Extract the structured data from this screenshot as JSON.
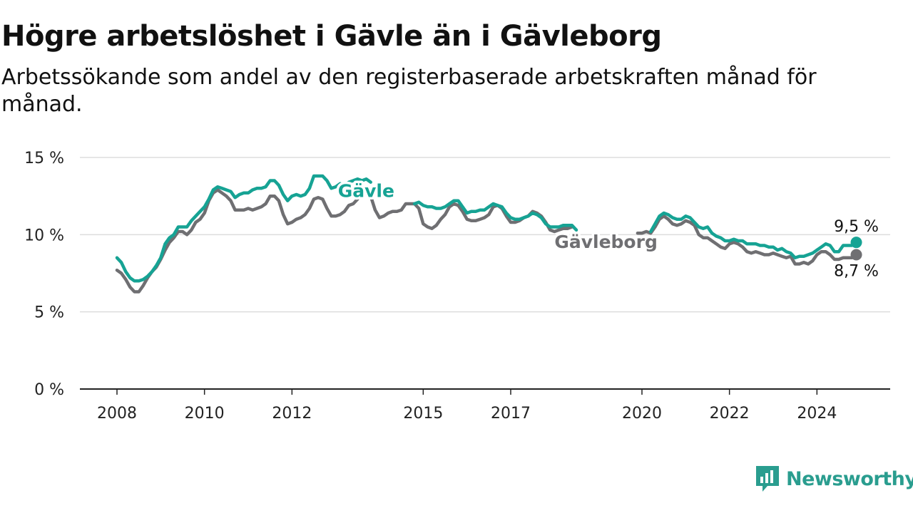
{
  "header": {
    "title": "Högre arbetslöshet i Gävle än i Gävleborg",
    "subtitle": "Arbetssökande som andel av den registerbaserade arbetskraften månad för månad."
  },
  "brand": {
    "name": "Newsworthy",
    "icon": "newsworthy-logo-icon"
  },
  "colors": {
    "gavle": "#16a394",
    "gavleborg": "#6f6f72",
    "grid": "#dddddd",
    "axis": "#222222"
  },
  "chart_data": {
    "type": "line",
    "title": "Högre arbetslöshet i Gävle än i Gävleborg",
    "xlabel": "",
    "ylabel": "",
    "ylim": [
      0,
      15
    ],
    "y_ticks": [
      0,
      5,
      10,
      15
    ],
    "y_tick_labels": [
      "0 %",
      "5 %",
      "10 %",
      "15 %"
    ],
    "x_ticks": [
      2008,
      2010,
      2012,
      2015,
      2017,
      2020,
      2022,
      2024
    ],
    "x_tick_labels": [
      "2008",
      "2010",
      "2012",
      "2015",
      "2017",
      "2020",
      "2022",
      "2024"
    ],
    "grid": "horizontal",
    "series": [
      {
        "name": "Gävle",
        "end_label": "9,5 %",
        "points": [
          [
            2008.0,
            8.5
          ],
          [
            2008.1,
            8.2
          ],
          [
            2008.2,
            7.6
          ],
          [
            2008.3,
            7.2
          ],
          [
            2008.4,
            7.0
          ],
          [
            2008.5,
            7.0
          ],
          [
            2008.6,
            7.1
          ],
          [
            2008.7,
            7.3
          ],
          [
            2008.8,
            7.6
          ],
          [
            2008.9,
            8.0
          ],
          [
            2009.0,
            8.5
          ],
          [
            2009.1,
            9.4
          ],
          [
            2009.2,
            9.8
          ],
          [
            2009.3,
            10.0
          ],
          [
            2009.4,
            10.5
          ],
          [
            2009.5,
            10.5
          ],
          [
            2009.6,
            10.5
          ],
          [
            2009.7,
            10.9
          ],
          [
            2009.8,
            11.2
          ],
          [
            2009.9,
            11.5
          ],
          [
            2010.0,
            11.8
          ],
          [
            2010.1,
            12.3
          ],
          [
            2010.2,
            12.9
          ],
          [
            2010.3,
            13.1
          ],
          [
            2010.4,
            13.0
          ],
          [
            2010.5,
            12.9
          ],
          [
            2010.6,
            12.8
          ],
          [
            2010.7,
            12.4
          ],
          [
            2010.8,
            12.6
          ],
          [
            2010.9,
            12.7
          ],
          [
            2011.0,
            12.7
          ],
          [
            2011.1,
            12.9
          ],
          [
            2011.2,
            13.0
          ],
          [
            2011.3,
            13.0
          ],
          [
            2011.4,
            13.1
          ],
          [
            2011.5,
            13.5
          ],
          [
            2011.6,
            13.5
          ],
          [
            2011.7,
            13.2
          ],
          [
            2011.8,
            12.6
          ],
          [
            2011.9,
            12.2
          ],
          [
            2012.0,
            12.5
          ],
          [
            2012.1,
            12.6
          ],
          [
            2012.2,
            12.5
          ],
          [
            2012.3,
            12.6
          ],
          [
            2012.4,
            13.0
          ],
          [
            2012.5,
            13.8
          ],
          [
            2012.6,
            13.8
          ],
          [
            2012.7,
            13.8
          ],
          [
            2012.8,
            13.5
          ],
          [
            2012.9,
            13.0
          ],
          [
            2013.0,
            13.1
          ],
          [
            2013.1,
            13.3
          ],
          [
            2013.2,
            13.2
          ],
          [
            2013.3,
            13.4
          ],
          [
            2013.4,
            13.5
          ],
          [
            2013.5,
            13.6
          ],
          [
            2013.6,
            13.5
          ],
          [
            2013.7,
            13.6
          ],
          [
            2013.8,
            13.4
          ],
          null,
          [
            2014.8,
            12.0
          ],
          [
            2014.9,
            12.1
          ],
          [
            2015.0,
            11.9
          ],
          [
            2015.1,
            11.8
          ],
          [
            2015.2,
            11.8
          ],
          [
            2015.3,
            11.7
          ],
          [
            2015.4,
            11.7
          ],
          [
            2015.5,
            11.8
          ],
          [
            2015.6,
            12.0
          ],
          [
            2015.7,
            12.2
          ],
          [
            2015.8,
            12.2
          ],
          [
            2015.9,
            11.8
          ],
          [
            2016.0,
            11.4
          ],
          [
            2016.1,
            11.5
          ],
          [
            2016.2,
            11.5
          ],
          [
            2016.3,
            11.6
          ],
          [
            2016.4,
            11.6
          ],
          [
            2016.5,
            11.8
          ],
          [
            2016.6,
            12.0
          ],
          [
            2016.7,
            11.9
          ],
          [
            2016.8,
            11.8
          ],
          [
            2016.9,
            11.4
          ],
          [
            2017.0,
            11.1
          ],
          [
            2017.1,
            11.0
          ],
          [
            2017.2,
            11.0
          ],
          [
            2017.3,
            11.1
          ],
          [
            2017.4,
            11.2
          ],
          [
            2017.5,
            11.4
          ],
          [
            2017.6,
            11.3
          ],
          [
            2017.7,
            11.1
          ],
          [
            2017.8,
            10.7
          ],
          [
            2017.9,
            10.5
          ],
          [
            2018.0,
            10.5
          ],
          [
            2018.1,
            10.5
          ],
          [
            2018.2,
            10.6
          ],
          [
            2018.3,
            10.6
          ],
          [
            2018.4,
            10.6
          ],
          [
            2018.5,
            10.3
          ],
          null,
          [
            2020.2,
            10.2
          ],
          [
            2020.3,
            10.7
          ],
          [
            2020.4,
            11.2
          ],
          [
            2020.5,
            11.4
          ],
          [
            2020.6,
            11.3
          ],
          [
            2020.7,
            11.1
          ],
          [
            2020.8,
            11.0
          ],
          [
            2020.9,
            11.0
          ],
          [
            2021.0,
            11.2
          ],
          [
            2021.1,
            11.1
          ],
          [
            2021.2,
            10.8
          ],
          [
            2021.3,
            10.5
          ],
          [
            2021.4,
            10.4
          ],
          [
            2021.5,
            10.5
          ],
          [
            2021.6,
            10.1
          ],
          [
            2021.7,
            9.9
          ],
          [
            2021.8,
            9.8
          ],
          [
            2021.9,
            9.6
          ],
          [
            2022.0,
            9.6
          ],
          [
            2022.1,
            9.7
          ],
          [
            2022.2,
            9.6
          ],
          [
            2022.3,
            9.6
          ],
          [
            2022.4,
            9.4
          ],
          [
            2022.5,
            9.4
          ],
          [
            2022.6,
            9.4
          ],
          [
            2022.7,
            9.3
          ],
          [
            2022.8,
            9.3
          ],
          [
            2022.9,
            9.2
          ],
          [
            2023.0,
            9.2
          ],
          [
            2023.1,
            9.0
          ],
          [
            2023.2,
            9.1
          ],
          [
            2023.3,
            8.9
          ],
          [
            2023.4,
            8.8
          ],
          [
            2023.5,
            8.5
          ],
          [
            2023.6,
            8.6
          ],
          [
            2023.7,
            8.6
          ],
          [
            2023.8,
            8.7
          ],
          [
            2023.9,
            8.8
          ],
          [
            2024.0,
            9.0
          ],
          [
            2024.1,
            9.2
          ],
          [
            2024.2,
            9.4
          ],
          [
            2024.3,
            9.3
          ],
          [
            2024.4,
            8.9
          ],
          [
            2024.5,
            8.9
          ],
          [
            2024.6,
            9.3
          ],
          [
            2024.7,
            9.3
          ],
          [
            2024.8,
            9.3
          ],
          [
            2024.9,
            9.5
          ]
        ]
      },
      {
        "name": "Gävleborg",
        "end_label": "8,7 %",
        "points": [
          [
            2008.0,
            7.7
          ],
          [
            2008.1,
            7.5
          ],
          [
            2008.2,
            7.1
          ],
          [
            2008.3,
            6.6
          ],
          [
            2008.4,
            6.3
          ],
          [
            2008.5,
            6.3
          ],
          [
            2008.6,
            6.7
          ],
          [
            2008.7,
            7.2
          ],
          [
            2008.8,
            7.6
          ],
          [
            2008.9,
            7.9
          ],
          [
            2009.0,
            8.4
          ],
          [
            2009.1,
            9.0
          ],
          [
            2009.2,
            9.5
          ],
          [
            2009.3,
            9.8
          ],
          [
            2009.4,
            10.2
          ],
          [
            2009.5,
            10.2
          ],
          [
            2009.6,
            10.0
          ],
          [
            2009.7,
            10.3
          ],
          [
            2009.8,
            10.8
          ],
          [
            2009.9,
            11.0
          ],
          [
            2010.0,
            11.4
          ],
          [
            2010.1,
            12.2
          ],
          [
            2010.2,
            12.7
          ],
          [
            2010.3,
            12.9
          ],
          [
            2010.4,
            12.7
          ],
          [
            2010.5,
            12.5
          ],
          [
            2010.6,
            12.2
          ],
          [
            2010.7,
            11.6
          ],
          [
            2010.8,
            11.6
          ],
          [
            2010.9,
            11.6
          ],
          [
            2011.0,
            11.7
          ],
          [
            2011.1,
            11.6
          ],
          [
            2011.2,
            11.7
          ],
          [
            2011.3,
            11.8
          ],
          [
            2011.4,
            12.0
          ],
          [
            2011.5,
            12.5
          ],
          [
            2011.6,
            12.5
          ],
          [
            2011.7,
            12.2
          ],
          [
            2011.8,
            11.3
          ],
          [
            2011.9,
            10.7
          ],
          [
            2012.0,
            10.8
          ],
          [
            2012.1,
            11.0
          ],
          [
            2012.2,
            11.1
          ],
          [
            2012.3,
            11.3
          ],
          [
            2012.4,
            11.7
          ],
          [
            2012.5,
            12.3
          ],
          [
            2012.6,
            12.4
          ],
          [
            2012.7,
            12.3
          ],
          [
            2012.8,
            11.7
          ],
          [
            2012.9,
            11.2
          ],
          [
            2013.0,
            11.2
          ],
          [
            2013.1,
            11.3
          ],
          [
            2013.2,
            11.5
          ],
          [
            2013.3,
            11.9
          ],
          [
            2013.4,
            12.0
          ],
          [
            2013.5,
            12.3
          ],
          null,
          [
            2013.8,
            12.5
          ],
          [
            2013.9,
            11.6
          ],
          [
            2014.0,
            11.1
          ],
          [
            2014.1,
            11.2
          ],
          [
            2014.2,
            11.4
          ],
          [
            2014.3,
            11.5
          ],
          [
            2014.4,
            11.5
          ],
          [
            2014.5,
            11.6
          ],
          [
            2014.6,
            12.0
          ],
          [
            2014.7,
            12.0
          ],
          [
            2014.8,
            12.0
          ],
          [
            2014.9,
            11.7
          ],
          [
            2015.0,
            10.7
          ],
          [
            2015.1,
            10.5
          ],
          [
            2015.2,
            10.4
          ],
          [
            2015.3,
            10.6
          ],
          [
            2015.4,
            11.0
          ],
          [
            2015.5,
            11.3
          ],
          [
            2015.6,
            11.8
          ],
          [
            2015.7,
            12.0
          ],
          [
            2015.8,
            11.9
          ],
          [
            2015.9,
            11.5
          ],
          [
            2016.0,
            11.0
          ],
          [
            2016.1,
            10.9
          ],
          [
            2016.2,
            10.9
          ],
          [
            2016.3,
            11.0
          ],
          [
            2016.4,
            11.1
          ],
          [
            2016.5,
            11.3
          ],
          [
            2016.6,
            11.8
          ],
          [
            2016.7,
            11.9
          ],
          [
            2016.8,
            11.7
          ],
          [
            2016.9,
            11.2
          ],
          [
            2017.0,
            10.8
          ],
          [
            2017.1,
            10.8
          ],
          [
            2017.2,
            10.9
          ],
          [
            2017.3,
            11.1
          ],
          [
            2017.4,
            11.2
          ],
          [
            2017.5,
            11.5
          ],
          [
            2017.6,
            11.4
          ],
          [
            2017.7,
            11.2
          ],
          [
            2017.8,
            10.8
          ],
          [
            2017.9,
            10.3
          ],
          [
            2018.0,
            10.2
          ],
          [
            2018.1,
            10.3
          ],
          [
            2018.2,
            10.4
          ],
          [
            2018.3,
            10.4
          ],
          [
            2018.4,
            10.5
          ],
          null,
          [
            2019.9,
            10.1
          ],
          [
            2020.0,
            10.1
          ],
          [
            2020.1,
            10.2
          ],
          [
            2020.2,
            10.1
          ],
          [
            2020.3,
            10.5
          ],
          [
            2020.4,
            11.0
          ],
          [
            2020.5,
            11.2
          ],
          [
            2020.6,
            11.0
          ],
          [
            2020.7,
            10.7
          ],
          [
            2020.8,
            10.6
          ],
          [
            2020.9,
            10.7
          ],
          [
            2021.0,
            10.9
          ],
          [
            2021.1,
            10.8
          ],
          [
            2021.2,
            10.6
          ],
          [
            2021.3,
            10.0
          ],
          [
            2021.4,
            9.8
          ],
          [
            2021.5,
            9.8
          ],
          [
            2021.6,
            9.6
          ],
          [
            2021.7,
            9.4
          ],
          [
            2021.8,
            9.2
          ],
          [
            2021.9,
            9.1
          ],
          [
            2022.0,
            9.4
          ],
          [
            2022.1,
            9.5
          ],
          [
            2022.2,
            9.4
          ],
          [
            2022.3,
            9.2
          ],
          [
            2022.4,
            8.9
          ],
          [
            2022.5,
            8.8
          ],
          [
            2022.6,
            8.9
          ],
          [
            2022.7,
            8.8
          ],
          [
            2022.8,
            8.7
          ],
          [
            2022.9,
            8.7
          ],
          [
            2023.0,
            8.8
          ],
          [
            2023.1,
            8.7
          ],
          [
            2023.2,
            8.6
          ],
          [
            2023.3,
            8.5
          ],
          [
            2023.4,
            8.6
          ],
          [
            2023.5,
            8.1
          ],
          [
            2023.6,
            8.1
          ],
          [
            2023.7,
            8.2
          ],
          [
            2023.8,
            8.1
          ],
          [
            2023.9,
            8.3
          ],
          [
            2024.0,
            8.7
          ],
          [
            2024.1,
            8.9
          ],
          [
            2024.2,
            8.9
          ],
          [
            2024.3,
            8.7
          ],
          [
            2024.4,
            8.4
          ],
          [
            2024.5,
            8.4
          ],
          [
            2024.6,
            8.5
          ],
          [
            2024.7,
            8.5
          ],
          [
            2024.8,
            8.5
          ],
          [
            2024.9,
            8.7
          ]
        ]
      }
    ]
  }
}
